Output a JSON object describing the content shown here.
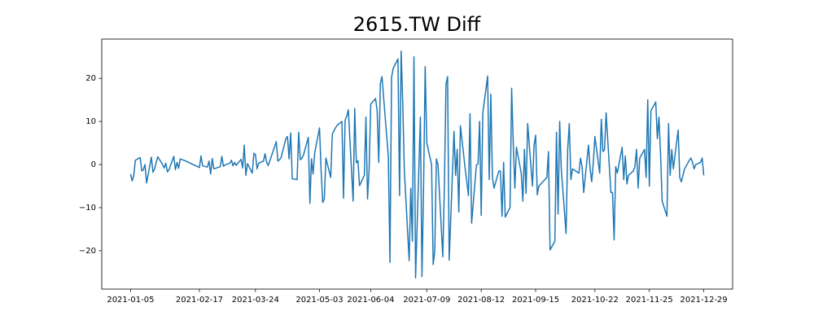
{
  "chart_data": {
    "type": "line",
    "title": "2615.TW Diff",
    "x": [
      "2021-01-05",
      "2021-01-06",
      "2021-01-07",
      "2021-01-08",
      "2021-01-11",
      "2021-01-12",
      "2021-01-13",
      "2021-01-14",
      "2021-01-15",
      "2021-01-18",
      "2021-01-19",
      "2021-01-20",
      "2021-01-21",
      "2021-01-22",
      "2021-01-25",
      "2021-01-26",
      "2021-01-27",
      "2021-01-28",
      "2021-01-29",
      "2021-02-01",
      "2021-02-02",
      "2021-02-03",
      "2021-02-04",
      "2021-02-05",
      "2021-02-08",
      "2021-02-17",
      "2021-02-18",
      "2021-02-19",
      "2021-02-22",
      "2021-02-23",
      "2021-02-24",
      "2021-02-25",
      "2021-02-26",
      "2021-03-02",
      "2021-03-03",
      "2021-03-04",
      "2021-03-05",
      "2021-03-08",
      "2021-03-09",
      "2021-03-10",
      "2021-03-11",
      "2021-03-12",
      "2021-03-15",
      "2021-03-16",
      "2021-03-17",
      "2021-03-18",
      "2021-03-19",
      "2021-03-22",
      "2021-03-23",
      "2021-03-24",
      "2021-03-25",
      "2021-03-26",
      "2021-03-29",
      "2021-03-30",
      "2021-03-31",
      "2021-04-01",
      "2021-04-06",
      "2021-04-07",
      "2021-04-08",
      "2021-04-09",
      "2021-04-12",
      "2021-04-13",
      "2021-04-14",
      "2021-04-15",
      "2021-04-16",
      "2021-04-19",
      "2021-04-20",
      "2021-04-21",
      "2021-04-22",
      "2021-04-23",
      "2021-04-26",
      "2021-04-27",
      "2021-04-28",
      "2021-04-29",
      "2021-04-30",
      "2021-05-03",
      "2021-05-04",
      "2021-05-05",
      "2021-05-06",
      "2021-05-07",
      "2021-05-10",
      "2021-05-11",
      "2021-05-12",
      "2021-05-13",
      "2021-05-14",
      "2021-05-17",
      "2021-05-18",
      "2021-05-19",
      "2021-05-20",
      "2021-05-21",
      "2021-05-24",
      "2021-05-25",
      "2021-05-26",
      "2021-05-27",
      "2021-05-28",
      "2021-05-31",
      "2021-06-01",
      "2021-06-02",
      "2021-06-03",
      "2021-06-04",
      "2021-06-07",
      "2021-06-08",
      "2021-06-09",
      "2021-06-10",
      "2021-06-11",
      "2021-06-15",
      "2021-06-16",
      "2021-06-17",
      "2021-06-18",
      "2021-06-21",
      "2021-06-22",
      "2021-06-23",
      "2021-06-24",
      "2021-06-25",
      "2021-06-28",
      "2021-06-29",
      "2021-06-30",
      "2021-07-01",
      "2021-07-02",
      "2021-07-05",
      "2021-07-06",
      "2021-07-07",
      "2021-07-08",
      "2021-07-09",
      "2021-07-12",
      "2021-07-13",
      "2021-07-14",
      "2021-07-15",
      "2021-07-16",
      "2021-07-19",
      "2021-07-20",
      "2021-07-21",
      "2021-07-22",
      "2021-07-23",
      "2021-07-26",
      "2021-07-27",
      "2021-07-28",
      "2021-07-29",
      "2021-07-30",
      "2021-08-02",
      "2021-08-03",
      "2021-08-04",
      "2021-08-05",
      "2021-08-06",
      "2021-08-09",
      "2021-08-10",
      "2021-08-11",
      "2021-08-12",
      "2021-08-13",
      "2021-08-16",
      "2021-08-17",
      "2021-08-18",
      "2021-08-19",
      "2021-08-20",
      "2021-08-23",
      "2021-08-24",
      "2021-08-25",
      "2021-08-26",
      "2021-08-27",
      "2021-08-30",
      "2021-08-31",
      "2021-09-01",
      "2021-09-02",
      "2021-09-03",
      "2021-09-06",
      "2021-09-07",
      "2021-09-08",
      "2021-09-09",
      "2021-09-10",
      "2021-09-13",
      "2021-09-14",
      "2021-09-15",
      "2021-09-16",
      "2021-09-17",
      "2021-09-22",
      "2021-09-23",
      "2021-09-24",
      "2021-09-27",
      "2021-09-28",
      "2021-09-29",
      "2021-09-30",
      "2021-10-01",
      "2021-10-04",
      "2021-10-05",
      "2021-10-06",
      "2021-10-07",
      "2021-10-08",
      "2021-10-12",
      "2021-10-13",
      "2021-10-14",
      "2021-10-15",
      "2021-10-18",
      "2021-10-19",
      "2021-10-20",
      "2021-10-21",
      "2021-10-22",
      "2021-10-25",
      "2021-10-26",
      "2021-10-27",
      "2021-10-28",
      "2021-10-29",
      "2021-11-01",
      "2021-11-02",
      "2021-11-03",
      "2021-11-04",
      "2021-11-05",
      "2021-11-08",
      "2021-11-09",
      "2021-11-10",
      "2021-11-11",
      "2021-11-12",
      "2021-11-15",
      "2021-11-16",
      "2021-11-17",
      "2021-11-18",
      "2021-11-19",
      "2021-11-22",
      "2021-11-23",
      "2021-11-24",
      "2021-11-25",
      "2021-11-26",
      "2021-11-29",
      "2021-11-30",
      "2021-12-01",
      "2021-12-02",
      "2021-12-03",
      "2021-12-06",
      "2021-12-07",
      "2021-12-08",
      "2021-12-09",
      "2021-12-10",
      "2021-12-13",
      "2021-12-14",
      "2021-12-15",
      "2021-12-16",
      "2021-12-17",
      "2021-12-20",
      "2021-12-21",
      "2021-12-22",
      "2021-12-23",
      "2021-12-24",
      "2021-12-27",
      "2021-12-28",
      "2021-12-29"
    ],
    "series": [
      {
        "color": "#1f77b4",
        "values": [
          -2.2,
          -3.8,
          -2.5,
          1.0,
          1.6,
          -1.5,
          -1.2,
          0.0,
          -4.3,
          1.7,
          -1.8,
          -1.0,
          0.5,
          1.8,
          0.0,
          -0.8,
          0.3,
          -1.7,
          -1.2,
          1.9,
          -1.2,
          0.5,
          -0.9,
          1.3,
          0.9,
          -0.7,
          2.0,
          -0.3,
          -0.6,
          0.8,
          -2.2,
          1.4,
          -1.0,
          -0.5,
          1.9,
          -0.4,
          -0.1,
          0.3,
          1.0,
          -0.3,
          0.5,
          -0.2,
          1.2,
          -0.8,
          4.5,
          -2.5,
          0.2,
          -2.0,
          2.6,
          2.3,
          -1.0,
          0.3,
          0.8,
          2.5,
          0.5,
          -0.2,
          5.3,
          0.8,
          1.1,
          1.6,
          6.0,
          6.5,
          1.3,
          7.3,
          -3.3,
          -3.5,
          7.5,
          1.1,
          1.5,
          2.2,
          6.3,
          -9.0,
          1.3,
          -2.2,
          2.7,
          8.5,
          -1.3,
          -8.8,
          -8.0,
          1.5,
          -3.0,
          7.1,
          7.8,
          8.5,
          9.1,
          10.0,
          -7.8,
          10.3,
          11.2,
          12.7,
          -8.5,
          13.0,
          0.4,
          0.9,
          -4.9,
          -2.5,
          11.0,
          -8.0,
          -1.0,
          14.0,
          15.3,
          12.5,
          0.5,
          18.8,
          20.4,
          1.8,
          -22.7,
          20.2,
          22.3,
          24.5,
          -7.2,
          26.3,
          14.0,
          -1.5,
          -22.3,
          -5.5,
          -17.8,
          25.0,
          -26.3,
          11.0,
          -26.0,
          -5.0,
          22.7,
          5.0,
          0.0,
          -23.2,
          -20.0,
          1.3,
          0.0,
          -21.4,
          -5.0,
          18.7,
          20.4,
          -22.2,
          7.7,
          -2.5,
          3.5,
          -11.0,
          9.0,
          -1.0,
          -4.0,
          -7.2,
          11.8,
          -13.6,
          -0.1,
          0.1,
          10.0,
          -11.8,
          12.0,
          20.5,
          -3.5,
          16.3,
          -3.0,
          -5.5,
          -1.5,
          -1.5,
          -12.0,
          0.5,
          -12.2,
          -10.0,
          17.7,
          5.0,
          -5.5,
          4.0,
          -2.0,
          -8.5,
          3.5,
          -6.7,
          9.5,
          -5.0,
          4.5,
          6.8,
          -7.0,
          -5.0,
          -3.0,
          3.0,
          -19.8,
          -17.8,
          7.5,
          -11.5,
          10.0,
          -1.0,
          -16.0,
          3.5,
          9.5,
          -3.5,
          -1.0,
          -2.0,
          1.5,
          -0.5,
          -6.5,
          4.5,
          -1.0,
          -4.0,
          0.5,
          6.5,
          -2.0,
          10.5,
          3.0,
          3.5,
          12.0,
          -6.5,
          -6.5,
          -17.5,
          -0.5,
          -2.0,
          4.0,
          -3.5,
          2.0,
          -4.5,
          -2.5,
          -1.5,
          -0.5,
          3.5,
          -5.5,
          1.5,
          3.5,
          -3.0,
          15.0,
          -5.0,
          12.5,
          14.5,
          6.0,
          11.0,
          2.5,
          -8.5,
          -12.0,
          9.5,
          -2.5,
          3.5,
          -1.0,
          8.0,
          -3.0,
          -4.0,
          -2.5,
          -1.0,
          1.0,
          1.5,
          0.5,
          -1.0,
          0.0,
          0.5,
          1.5,
          -2.5
        ]
      }
    ],
    "xlim": [
      "2020-12-18",
      "2022-01-16"
    ],
    "xticks": [
      "2021-01-05",
      "2021-02-17",
      "2021-03-24",
      "2021-05-03",
      "2021-06-04",
      "2021-07-09",
      "2021-08-12",
      "2021-09-15",
      "2021-10-22",
      "2021-11-25",
      "2021-12-29"
    ],
    "ylim": [
      -28.9,
      29.1
    ],
    "yticks": [
      {
        "value": -20,
        "label": "−20"
      },
      {
        "value": -10,
        "label": "−10"
      },
      0,
      10,
      20
    ]
  }
}
